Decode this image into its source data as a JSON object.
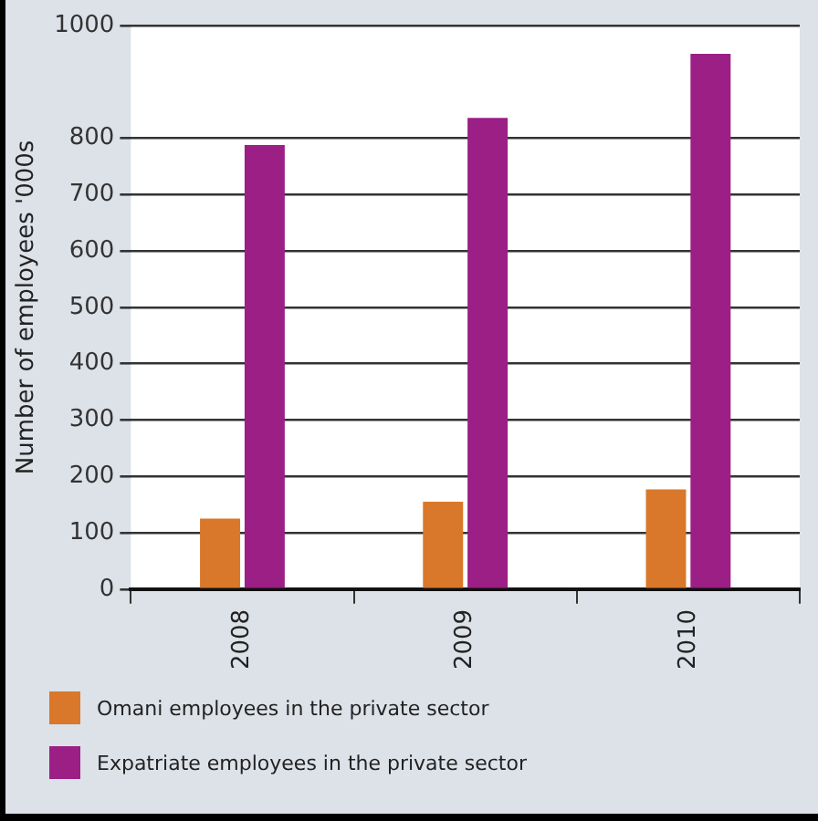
{
  "chart_data": {
    "type": "bar",
    "ylabel": "Number of employees '000s",
    "categories": [
      "2008",
      "2009",
      "2010"
    ],
    "series": [
      {
        "name": "Omani employees in the private sector",
        "color": "#d9782a",
        "values": [
          125,
          155,
          177
        ]
      },
      {
        "name": "Expatriate employees in the private sector",
        "color": "#9b1f85",
        "values": [
          788,
          836,
          950
        ]
      }
    ],
    "ylim": [
      0,
      1000
    ],
    "yticks": [
      0,
      100,
      200,
      300,
      400,
      500,
      600,
      700,
      800,
      1000
    ],
    "grid": "y",
    "legend": "bottom"
  }
}
